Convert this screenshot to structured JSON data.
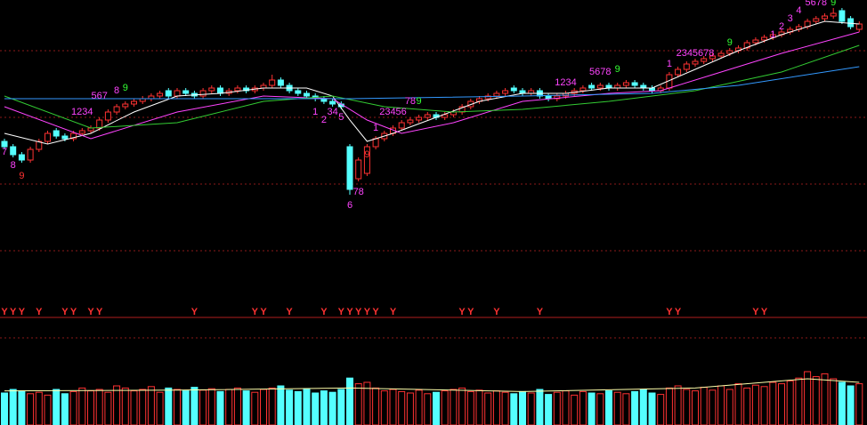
{
  "chart_data": [
    {
      "type": "candlestick",
      "ylim": [
        0,
        100
      ],
      "up_color": "#ff3232",
      "down_color": "#54ffff",
      "open": [
        47,
        45,
        42,
        40,
        44,
        47,
        51,
        49,
        48,
        50,
        51,
        52,
        55,
        58,
        60,
        61,
        62,
        63,
        64,
        66,
        64,
        66,
        65,
        64,
        66,
        67,
        65,
        66,
        67,
        66,
        67,
        68,
        70,
        68,
        66,
        65,
        64,
        63,
        62,
        61,
        45,
        33,
        35,
        45,
        48,
        50,
        52,
        54,
        55,
        56,
        57,
        56,
        57,
        58,
        60,
        62,
        63,
        64,
        65,
        67,
        66,
        65,
        66,
        64,
        63,
        64,
        65,
        66,
        68,
        67,
        68,
        67,
        68,
        69,
        68,
        67,
        66,
        67,
        72,
        74,
        76,
        77,
        78,
        79,
        80,
        81,
        82,
        84,
        85,
        86,
        87,
        88,
        89,
        90,
        92,
        93,
        94,
        96,
        93,
        89
      ],
      "high": [
        48,
        46,
        43,
        45,
        48,
        51,
        52,
        50,
        51,
        52,
        53,
        56,
        59,
        61,
        62,
        63,
        64,
        65,
        66,
        67,
        67,
        67,
        66,
        67,
        68,
        68,
        67,
        68,
        68,
        68,
        69,
        72,
        71,
        69,
        67,
        66,
        65,
        64,
        63,
        62,
        46,
        41,
        46,
        49,
        51,
        53,
        55,
        56,
        57,
        58,
        58,
        58,
        59,
        61,
        63,
        64,
        65,
        66,
        67,
        68,
        67,
        67,
        67,
        65,
        65,
        66,
        67,
        68,
        69,
        69,
        69,
        69,
        70,
        70,
        69,
        68,
        68,
        73,
        75,
        77,
        78,
        79,
        80,
        81,
        82,
        83,
        85,
        86,
        87,
        88,
        89,
        90,
        91,
        93,
        94,
        95,
        97,
        97,
        94,
        92
      ],
      "low": [
        44,
        41,
        39,
        39,
        43,
        46,
        48,
        47,
        47,
        49,
        50,
        51,
        54,
        57,
        59,
        60,
        61,
        62,
        63,
        63,
        63,
        64,
        63,
        63,
        65,
        64,
        64,
        65,
        65,
        65,
        66,
        67,
        67,
        65,
        64,
        63,
        62,
        61,
        60,
        59,
        27,
        32,
        34,
        44,
        47,
        49,
        51,
        53,
        54,
        55,
        55,
        55,
        56,
        57,
        59,
        61,
        62,
        63,
        64,
        65,
        64,
        64,
        63,
        62,
        62,
        63,
        64,
        65,
        66,
        66,
        66,
        66,
        67,
        67,
        66,
        65,
        65,
        66,
        71,
        73,
        75,
        76,
        77,
        78,
        79,
        80,
        81,
        83,
        84,
        85,
        86,
        87,
        88,
        89,
        91,
        92,
        93,
        91,
        89,
        88
      ],
      "close": [
        45,
        42,
        40,
        44,
        47,
        50,
        49,
        48,
        50,
        51,
        52,
        55,
        58,
        60,
        61,
        62,
        63,
        64,
        65,
        64,
        66,
        65,
        64,
        66,
        67,
        65,
        66,
        67,
        66,
        67,
        68,
        70,
        68,
        66,
        65,
        64,
        63,
        62,
        61,
        60,
        29,
        40,
        45,
        48,
        50,
        52,
        54,
        55,
        56,
        57,
        56,
        57,
        58,
        60,
        62,
        63,
        64,
        65,
        66,
        66,
        65,
        66,
        64,
        63,
        64,
        65,
        66,
        67,
        67,
        68,
        67,
        68,
        69,
        68,
        67,
        66,
        67,
        72,
        74,
        76,
        77,
        78,
        79,
        80,
        81,
        82,
        84,
        85,
        86,
        87,
        88,
        89,
        90,
        92,
        93,
        94,
        95,
        92,
        90,
        91
      ],
      "series": [
        {
          "color": "#ffffff",
          "x": [
            0,
            5,
            10,
            15,
            20,
            25,
            30,
            35,
            38,
            40,
            42,
            45,
            50,
            55,
            60,
            65,
            70,
            75,
            80,
            85,
            90,
            95,
            99
          ],
          "values": [
            50,
            46,
            50,
            58,
            64,
            65,
            67,
            67,
            64,
            55,
            47,
            50,
            56,
            62,
            65,
            65,
            67,
            67,
            74,
            81,
            87,
            92,
            91
          ]
        },
        {
          "color": "#ff44ff",
          "x": [
            0,
            10,
            20,
            30,
            38,
            42,
            46,
            52,
            60,
            70,
            76,
            82,
            90,
            99
          ],
          "values": [
            60,
            48,
            58,
            64,
            63,
            55,
            50,
            54,
            62,
            65,
            66,
            72,
            80,
            88
          ]
        },
        {
          "color": "#33cc33",
          "x": [
            0,
            10,
            20,
            30,
            38,
            44,
            52,
            60,
            70,
            80,
            90,
            99
          ],
          "values": [
            64,
            52,
            54,
            62,
            64,
            60,
            58,
            59,
            62,
            66,
            73,
            83
          ]
        },
        {
          "color": "#3399ff",
          "x": [
            0,
            20,
            40,
            60,
            75,
            85,
            99
          ],
          "values": [
            63,
            63,
            63,
            64,
            65,
            68,
            75
          ]
        }
      ],
      "annotations": [
        {
          "text": "7",
          "x": 0,
          "y": 43,
          "color": "#ff44ff"
        },
        {
          "text": "8",
          "x": 1,
          "y": 38,
          "color": "#ff44ff"
        },
        {
          "text": "9",
          "x": 2,
          "y": 34,
          "color": "#ff3232"
        },
        {
          "text": "1234",
          "x": 9,
          "y": 58,
          "color": "#ff44ff"
        },
        {
          "text": "567",
          "x": 11,
          "y": 64,
          "color": "#ff44ff"
        },
        {
          "text": "8",
          "x": 13,
          "y": 66,
          "color": "#ff44ff"
        },
        {
          "text": "9",
          "x": 14,
          "y": 67,
          "color": "#33ff33"
        },
        {
          "text": "1",
          "x": 36,
          "y": 58,
          "color": "#ff44ff"
        },
        {
          "text": "2",
          "x": 37,
          "y": 55,
          "color": "#ff44ff"
        },
        {
          "text": "34",
          "x": 38,
          "y": 58,
          "color": "#ff44ff"
        },
        {
          "text": "5",
          "x": 39,
          "y": 56,
          "color": "#ff44ff"
        },
        {
          "text": "6",
          "x": 40,
          "y": 23,
          "color": "#ff44ff"
        },
        {
          "text": "78",
          "x": 41,
          "y": 28,
          "color": "#ff44ff"
        },
        {
          "text": "9",
          "x": 42,
          "y": 42,
          "color": "#ff3232"
        },
        {
          "text": "1",
          "x": 43,
          "y": 52,
          "color": "#ff44ff"
        },
        {
          "text": "23456",
          "x": 45,
          "y": 58,
          "color": "#ff44ff"
        },
        {
          "text": "78",
          "x": 47,
          "y": 62,
          "color": "#ff44ff"
        },
        {
          "text": "9",
          "x": 48,
          "y": 62,
          "color": "#33ff33"
        },
        {
          "text": "1234",
          "x": 65,
          "y": 69,
          "color": "#ff44ff"
        },
        {
          "text": "5678",
          "x": 69,
          "y": 73,
          "color": "#ff44ff"
        },
        {
          "text": "9",
          "x": 71,
          "y": 74,
          "color": "#33ff33"
        },
        {
          "text": "1",
          "x": 77,
          "y": 76,
          "color": "#ff44ff"
        },
        {
          "text": "2345678",
          "x": 80,
          "y": 80,
          "color": "#ff44ff"
        },
        {
          "text": "9",
          "x": 84,
          "y": 84,
          "color": "#33ff33"
        },
        {
          "text": "1",
          "x": 89,
          "y": 87,
          "color": "#ff44ff"
        },
        {
          "text": "2",
          "x": 90,
          "y": 90,
          "color": "#ff44ff"
        },
        {
          "text": "3",
          "x": 91,
          "y": 93,
          "color": "#ff44ff"
        },
        {
          "text": "4",
          "x": 92,
          "y": 96,
          "color": "#ff44ff"
        },
        {
          "text": "5678",
          "x": 94,
          "y": 99,
          "color": "#ff44ff"
        },
        {
          "text": "9",
          "x": 96,
          "y": 99,
          "color": "#33ff33"
        }
      ]
    },
    {
      "type": "signal",
      "label": "Y",
      "color": "#ff3232",
      "x": [
        0,
        1,
        2,
        4,
        7,
        8,
        10,
        11,
        22,
        29,
        30,
        33,
        37,
        39,
        40,
        41,
        42,
        43,
        45,
        53,
        54,
        57,
        62,
        77,
        78,
        87,
        88
      ]
    },
    {
      "type": "bar",
      "ylim": [
        0,
        100
      ],
      "values": [
        45,
        50,
        48,
        44,
        46,
        42,
        50,
        44,
        47,
        52,
        48,
        50,
        46,
        55,
        52,
        48,
        50,
        54,
        46,
        52,
        50,
        48,
        53,
        49,
        51,
        47,
        50,
        52,
        48,
        46,
        50,
        52,
        55,
        49,
        47,
        50,
        45,
        48,
        46,
        50,
        66,
        58,
        60,
        52,
        48,
        50,
        47,
        45,
        49,
        44,
        46,
        48,
        50,
        52,
        47,
        49,
        45,
        48,
        46,
        44,
        47,
        45,
        50,
        43,
        46,
        48,
        42,
        47,
        45,
        44,
        48,
        46,
        44,
        47,
        50,
        45,
        43,
        52,
        55,
        50,
        48,
        53,
        49,
        55,
        50,
        58,
        52,
        56,
        54,
        60,
        58,
        62,
        66,
        75,
        68,
        72,
        65,
        60,
        55,
        58
      ],
      "series": [
        {
          "color": "#ffffaa",
          "x": [
            0,
            20,
            40,
            60,
            80,
            93,
            99
          ],
          "values": [
            48,
            49,
            52,
            47,
            52,
            65,
            60
          ]
        }
      ]
    }
  ]
}
